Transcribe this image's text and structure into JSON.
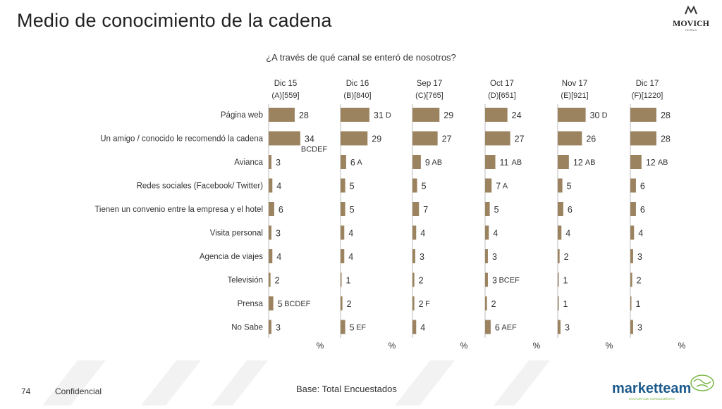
{
  "page": {
    "title": "Medio de conocimiento de la cadena",
    "question": "¿A través de qué canal se enteró de nosotros?",
    "page_number": "74",
    "confidential": "Confidencial",
    "base": "Base: Total Encuestados",
    "brand": "MOVICH",
    "brand_sub": "HOTELS",
    "agency": "marketteam",
    "agency_sub": "CULTURA DE CONOCIMIENTO"
  },
  "colors": {
    "bar": "#9b8360",
    "axis": "#bbbbbb",
    "agency_blue": "#1c5a8c",
    "agency_green": "#7ab648"
  },
  "chart_data": {
    "type": "bar",
    "orientation": "horizontal",
    "unit_label": "%",
    "categories": [
      "Página web",
      "Un amigo / conocido le recomendó la cadena",
      "Avianca",
      "Redes sociales (Facebook/ Twitter)",
      "Tienen un convenio entre la empresa y el hotel",
      "Visita personal",
      "Agencia de viajes",
      "Televisión",
      "Prensa",
      "No Sabe"
    ],
    "series": [
      {
        "period": "Dic 15",
        "base": "(A)[559]",
        "values": [
          28,
          34,
          3,
          4,
          6,
          3,
          4,
          2,
          5,
          3
        ],
        "sig": [
          "",
          "BCDEF",
          "",
          "",
          "",
          "",
          "",
          "",
          "BCDEF",
          ""
        ]
      },
      {
        "period": "Dic 16",
        "base": "(B)[840]",
        "values": [
          31,
          29,
          6,
          5,
          5,
          4,
          4,
          1,
          2,
          5
        ],
        "sig": [
          "D",
          "",
          "A",
          "",
          "",
          "",
          "",
          "",
          "",
          "EF"
        ]
      },
      {
        "period": "Sep 17",
        "base": "(C)[765]",
        "values": [
          29,
          27,
          9,
          5,
          7,
          4,
          3,
          2,
          2,
          4
        ],
        "sig": [
          "",
          "",
          "AB",
          "",
          "",
          "",
          "",
          "",
          "F",
          ""
        ]
      },
      {
        "period": "Oct 17",
        "base": "(D)[651]",
        "values": [
          24,
          27,
          11,
          7,
          5,
          4,
          3,
          3,
          2,
          6
        ],
        "sig": [
          "",
          "",
          "AB",
          "A",
          "",
          "",
          "",
          "BCEF",
          "",
          "AEF"
        ]
      },
      {
        "period": "Nov 17",
        "base": "(E)[921]",
        "values": [
          30,
          26,
          12,
          5,
          6,
          4,
          2,
          1,
          1,
          3
        ],
        "sig": [
          "D",
          "",
          "AB",
          "",
          "",
          "",
          "",
          "",
          "",
          ""
        ]
      },
      {
        "period": "Dic 17",
        "base": "(F)[1220]",
        "values": [
          28,
          28,
          12,
          6,
          6,
          4,
          3,
          2,
          1,
          3
        ],
        "sig": [
          "",
          "",
          "AB",
          "",
          "",
          "",
          "",
          "",
          "",
          ""
        ]
      }
    ]
  }
}
